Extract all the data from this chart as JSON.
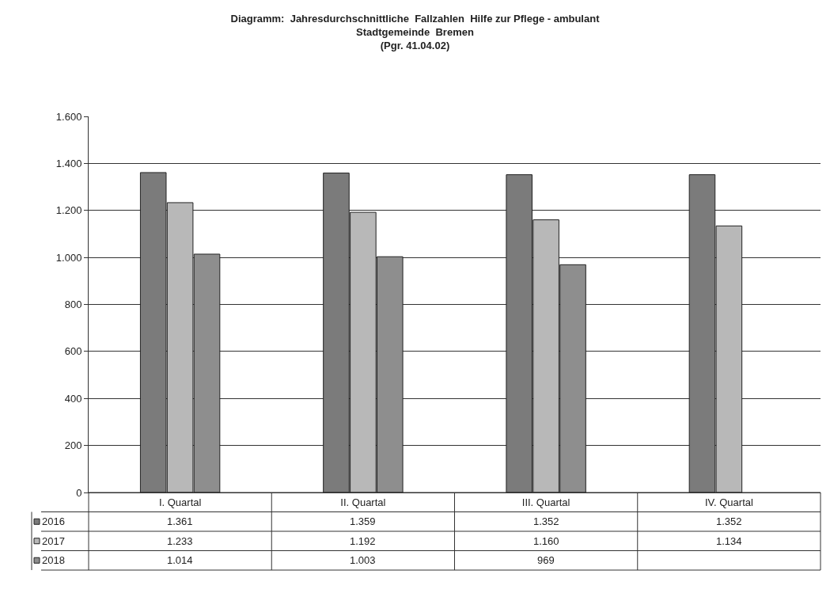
{
  "chart_data": {
    "type": "bar",
    "title": "Diagramm:  Jahresdurchschnittliche  Fallzahlen  Hilfe zur Pflege - ambulant\nStadtgemeinde  Bremen\n(Pgr. 41.04.02)",
    "categories": [
      "I. Quartal",
      "II. Quartal",
      "III. Quartal",
      "IV. Quartal"
    ],
    "series": [
      {
        "name": "2016",
        "color": "#7b7b7b",
        "values": [
          1361,
          1359,
          1352,
          1352
        ],
        "value_labels": [
          "1.361",
          "1.359",
          "1.352",
          "1.352"
        ]
      },
      {
        "name": "2017",
        "color": "#b8b8b8",
        "values": [
          1233,
          1192,
          1160,
          1134
        ],
        "value_labels": [
          "1.233",
          "1.192",
          "1.160",
          "1.134"
        ]
      },
      {
        "name": "2018",
        "color": "#8e8e8e",
        "values": [
          1014,
          1003,
          969,
          null
        ],
        "value_labels": [
          "1.014",
          "1.003",
          "969",
          null
        ]
      }
    ],
    "ylim": [
      0,
      1600
    ],
    "yticks": [
      {
        "value": 0,
        "label": "0"
      },
      {
        "value": 200,
        "label": "200"
      },
      {
        "value": 400,
        "label": "400"
      },
      {
        "value": 600,
        "label": "600"
      },
      {
        "value": 800,
        "label": "800"
      },
      {
        "value": 1000,
        "label": "1.000"
      },
      {
        "value": 1200,
        "label": "1.200"
      },
      {
        "value": 1400,
        "label": "1.400"
      },
      {
        "value": 1600,
        "label": "1.600"
      }
    ],
    "grid": "y",
    "legend": "bottom left"
  }
}
